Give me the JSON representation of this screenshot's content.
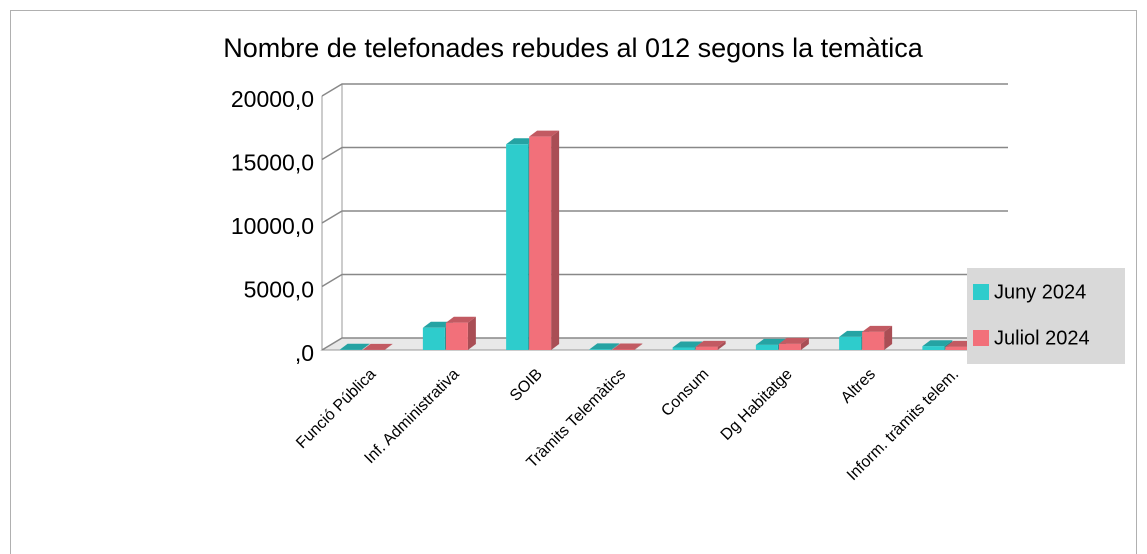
{
  "chart_data": {
    "type": "bar3d",
    "title": "Nombre de telefonades rebudes al 012 segons la temàtica",
    "categories": [
      "Funció Pública",
      "Inf. Administrativa",
      "SOIB",
      "Tràmits Telemàtics",
      "Consum",
      "Dg Habitatge",
      "Altres",
      "Inform. tràmits telem."
    ],
    "series": [
      {
        "name": "Juny 2024",
        "color": "#2ecccc",
        "values": [
          20,
          1750,
          16200,
          50,
          200,
          400,
          1030,
          300
        ]
      },
      {
        "name": "Juliol 2024",
        "color": "#f2707a",
        "values": [
          10,
          2150,
          16800,
          40,
          250,
          480,
          1430,
          250
        ]
      }
    ],
    "ylim": [
      0,
      20000
    ],
    "yticks": [
      {
        "value": 0,
        "label": ",0"
      },
      {
        "value": 5000,
        "label": "5000,0"
      },
      {
        "value": 10000,
        "label": "10000,0"
      },
      {
        "value": 15000,
        "label": "15000,0"
      },
      {
        "value": 20000,
        "label": "20000,0"
      }
    ],
    "grid": true,
    "legend": "right"
  }
}
